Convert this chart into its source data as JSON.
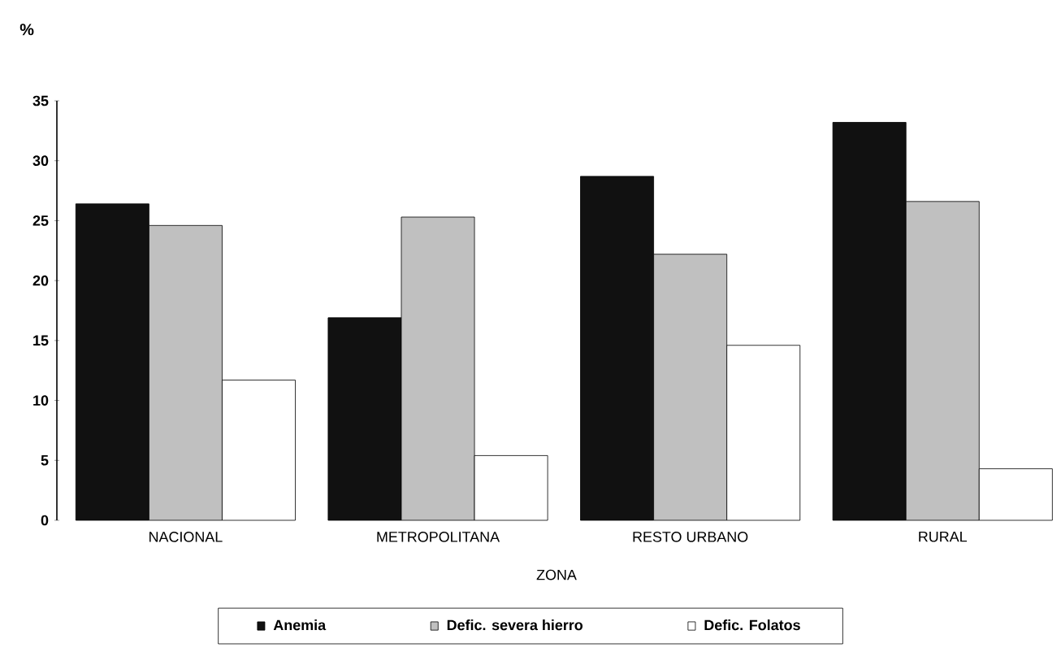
{
  "chart_data": {
    "type": "bar",
    "xlabel": "ZONA",
    "ylabel": "%",
    "categories": [
      "NACIONAL",
      "METROPOLITANA",
      "RESTO URBANO",
      "RURAL"
    ],
    "series": [
      {
        "name": "Anemia",
        "color": "#111111",
        "values": [
          26.4,
          16.9,
          28.7,
          33.2
        ]
      },
      {
        "name": "Defic. severa hierro",
        "color": "#c0c0c0",
        "values": [
          24.6,
          25.3,
          22.2,
          26.6
        ]
      },
      {
        "name": "Defic. Folatos",
        "color": "#ffffff",
        "values": [
          11.7,
          5.4,
          14.6,
          4.3
        ]
      }
    ],
    "ylim": [
      0,
      35
    ],
    "yticks": [
      0,
      5,
      10,
      15,
      20,
      25,
      30,
      35
    ],
    "grid": false,
    "legend": "bottom"
  }
}
